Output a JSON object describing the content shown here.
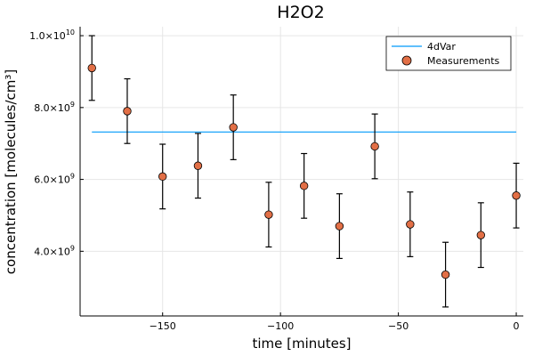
{
  "chart_data": {
    "type": "scatter",
    "title": "H2O2",
    "xlabel": "time [minutes]",
    "ylabel": "concentration [molecules/cm³]",
    "xlim": [
      -185,
      3
    ],
    "ylim": [
      2200000000.0,
      10250000000.0
    ],
    "x_ticks": [
      -150,
      -100,
      -50,
      0
    ],
    "x_tick_labels": [
      "−150",
      "−100",
      "−50",
      "0"
    ],
    "y_ticks": [
      4000000000.0,
      6000000000.0,
      8000000000.0,
      10000000000.0
    ],
    "y_tick_labels": [
      {
        "mantissa": "4.0×10",
        "exp": "9"
      },
      {
        "mantissa": "6.0×10",
        "exp": "9"
      },
      {
        "mantissa": "8.0×10",
        "exp": "9"
      },
      {
        "mantissa": "1.0×10",
        "exp": "10"
      }
    ],
    "grid": true,
    "legend_position": "top-right",
    "series": [
      {
        "name": "4dVar",
        "kind": "line",
        "color": "#009af9",
        "x": [
          -180,
          0
        ],
        "y": [
          7320000000.0,
          7320000000.0
        ]
      },
      {
        "name": "Measurements",
        "kind": "scatter",
        "color": "#e26f46",
        "x": [
          -180,
          -165,
          -150,
          -135,
          -120,
          -105,
          -90,
          -75,
          -60,
          -45,
          -30,
          -15,
          0
        ],
        "y": [
          9100000000.0,
          7900000000.0,
          6080000000.0,
          6380000000.0,
          7450000000.0,
          5020000000.0,
          5820000000.0,
          4700000000.0,
          6920000000.0,
          4750000000.0,
          3350000000.0,
          4450000000.0,
          5550000000.0
        ],
        "err": [
          900000000.0,
          900000000.0,
          900000000.0,
          900000000.0,
          900000000.0,
          900000000.0,
          900000000.0,
          900000000.0,
          900000000.0,
          900000000.0,
          900000000.0,
          900000000.0,
          900000000.0
        ]
      }
    ]
  }
}
